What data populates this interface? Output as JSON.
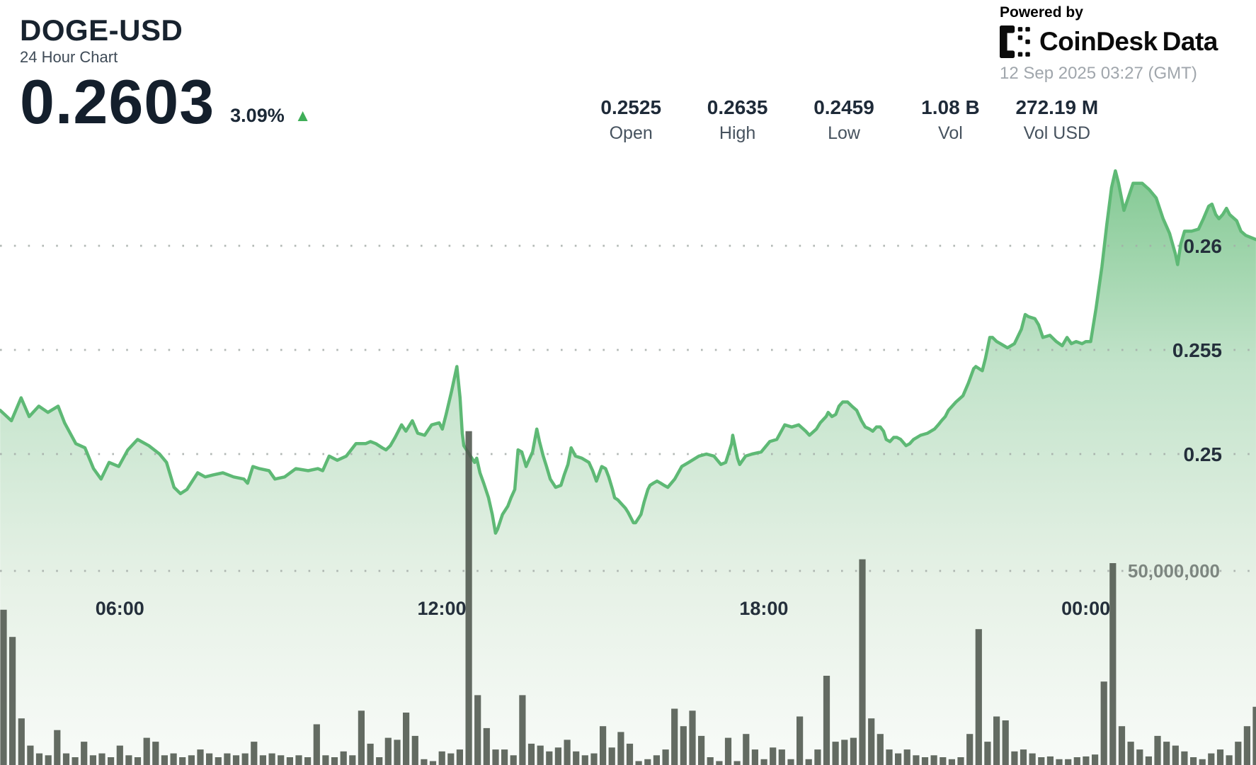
{
  "header": {
    "symbol": "DOGE-USD",
    "subtitle": "24 Hour Chart",
    "price": "0.2603",
    "change_percent": "3.09%",
    "change_direction": "up",
    "stats": [
      {
        "value": "0.2525",
        "label": "Open"
      },
      {
        "value": "0.2635",
        "label": "High"
      },
      {
        "value": "0.2459",
        "label": "Low"
      },
      {
        "value": "1.08 B",
        "label": "Vol"
      },
      {
        "value": "272.19 M",
        "label": "Vol USD"
      }
    ],
    "powered_by": "Powered by",
    "brand": {
      "primary": "CoinDesk",
      "secondary": "Data"
    },
    "timestamp": "12 Sep 2025 03:27 (GMT)"
  },
  "icons": {
    "up_triangle": "▲"
  },
  "colors": {
    "accent_green": "#3fae58",
    "line_green": "#5eb975",
    "area_top": "#7cc68d",
    "area_mid": "#c2e3ca",
    "area_low": "#e6f1e6",
    "area_bottom": "#f8fbf8",
    "volume_bar": "#4f574d",
    "grid": "#a5ada9",
    "axis_text_dark": "#242f3b",
    "volume_label_gray": "#7d8680"
  },
  "chart_data": {
    "type": "area",
    "title": "DOGE-USD 24 Hour Chart",
    "x_unit": "hours_gmt",
    "x_range": [
      3.77,
      27.17
    ],
    "price_ticks": [
      {
        "label": "0.26",
        "value": 0.26
      },
      {
        "label": "0.255",
        "value": 0.255
      },
      {
        "label": "0.25",
        "value": 0.25
      }
    ],
    "volume_ticks": [
      {
        "label": "50,000,000",
        "value": 50
      }
    ],
    "time_ticks": [
      {
        "label": "06:00",
        "t": 6
      },
      {
        "label": "12:00",
        "t": 12
      },
      {
        "label": "18:00",
        "t": 18
      },
      {
        "label": "00:00",
        "t": 24
      }
    ],
    "grid": "dotted",
    "price_series": [
      [
        3.77,
        0.2521
      ],
      [
        3.98,
        0.2516
      ],
      [
        4.16,
        0.2527
      ],
      [
        4.31,
        0.2518
      ],
      [
        4.49,
        0.2523
      ],
      [
        4.66,
        0.252
      ],
      [
        4.85,
        0.2523
      ],
      [
        4.97,
        0.2515
      ],
      [
        5.18,
        0.2505
      ],
      [
        5.35,
        0.2503
      ],
      [
        5.51,
        0.2493
      ],
      [
        5.65,
        0.2488
      ],
      [
        5.8,
        0.2496
      ],
      [
        5.98,
        0.2494
      ],
      [
        6.15,
        0.2502
      ],
      [
        6.33,
        0.2507
      ],
      [
        6.54,
        0.2504
      ],
      [
        6.74,
        0.25
      ],
      [
        6.87,
        0.2496
      ],
      [
        7.01,
        0.2484
      ],
      [
        7.13,
        0.2481
      ],
      [
        7.25,
        0.2483
      ],
      [
        7.45,
        0.2491
      ],
      [
        7.59,
        0.2489
      ],
      [
        7.74,
        0.249
      ],
      [
        7.92,
        0.2491
      ],
      [
        8.12,
        0.2489
      ],
      [
        8.31,
        0.2488
      ],
      [
        8.38,
        0.2486
      ],
      [
        8.48,
        0.2494
      ],
      [
        8.6,
        0.2493
      ],
      [
        8.78,
        0.2492
      ],
      [
        8.89,
        0.2488
      ],
      [
        9.07,
        0.2489
      ],
      [
        9.28,
        0.2493
      ],
      [
        9.51,
        0.2492
      ],
      [
        9.69,
        0.2493
      ],
      [
        9.78,
        0.2492
      ],
      [
        9.9,
        0.2499
      ],
      [
        10.05,
        0.2497
      ],
      [
        10.22,
        0.2499
      ],
      [
        10.4,
        0.2505
      ],
      [
        10.58,
        0.2505
      ],
      [
        10.67,
        0.2506
      ],
      [
        10.77,
        0.2505
      ],
      [
        10.89,
        0.2503
      ],
      [
        10.96,
        0.2502
      ],
      [
        11.04,
        0.2504
      ],
      [
        11.13,
        0.2508
      ],
      [
        11.25,
        0.2514
      ],
      [
        11.33,
        0.2511
      ],
      [
        11.45,
        0.2516
      ],
      [
        11.55,
        0.251
      ],
      [
        11.68,
        0.2509
      ],
      [
        11.81,
        0.2514
      ],
      [
        11.95,
        0.2515
      ],
      [
        12.01,
        0.2512
      ],
      [
        12.08,
        0.2519
      ],
      [
        12.18,
        0.253
      ],
      [
        12.28,
        0.2542
      ],
      [
        12.34,
        0.2527
      ],
      [
        12.38,
        0.251
      ],
      [
        12.41,
        0.2504
      ],
      [
        12.51,
        0.25
      ],
      [
        12.61,
        0.2496
      ],
      [
        12.65,
        0.2498
      ],
      [
        12.71,
        0.2491
      ],
      [
        12.78,
        0.2486
      ],
      [
        12.87,
        0.2479
      ],
      [
        12.94,
        0.2471
      ],
      [
        13.0,
        0.2462
      ],
      [
        13.04,
        0.2464
      ],
      [
        13.13,
        0.2471
      ],
      [
        13.23,
        0.2475
      ],
      [
        13.29,
        0.2479
      ],
      [
        13.36,
        0.2483
      ],
      [
        13.42,
        0.2502
      ],
      [
        13.49,
        0.2501
      ],
      [
        13.57,
        0.2494
      ],
      [
        13.62,
        0.2497
      ],
      [
        13.69,
        0.2501
      ],
      [
        13.77,
        0.2512
      ],
      [
        13.82,
        0.2506
      ],
      [
        13.89,
        0.2499
      ],
      [
        13.95,
        0.2494
      ],
      [
        14.02,
        0.2488
      ],
      [
        14.12,
        0.2484
      ],
      [
        14.22,
        0.2485
      ],
      [
        14.28,
        0.249
      ],
      [
        14.35,
        0.2495
      ],
      [
        14.41,
        0.2503
      ],
      [
        14.49,
        0.2499
      ],
      [
        14.61,
        0.2498
      ],
      [
        14.74,
        0.2496
      ],
      [
        14.81,
        0.2492
      ],
      [
        14.88,
        0.2487
      ],
      [
        14.91,
        0.2489
      ],
      [
        14.98,
        0.2494
      ],
      [
        15.05,
        0.2493
      ],
      [
        15.11,
        0.2489
      ],
      [
        15.18,
        0.2483
      ],
      [
        15.22,
        0.2479
      ],
      [
        15.28,
        0.2478
      ],
      [
        15.35,
        0.2476
      ],
      [
        15.42,
        0.2474
      ],
      [
        15.47,
        0.2472
      ],
      [
        15.57,
        0.2467
      ],
      [
        15.61,
        0.2467
      ],
      [
        15.71,
        0.2471
      ],
      [
        15.77,
        0.2477
      ],
      [
        15.84,
        0.2483
      ],
      [
        15.88,
        0.2485
      ],
      [
        15.94,
        0.2486
      ],
      [
        16.01,
        0.2487
      ],
      [
        16.08,
        0.2486
      ],
      [
        16.14,
        0.2485
      ],
      [
        16.21,
        0.2484
      ],
      [
        16.34,
        0.2488
      ],
      [
        16.47,
        0.2494
      ],
      [
        16.6,
        0.2496
      ],
      [
        16.79,
        0.2499
      ],
      [
        16.93,
        0.25
      ],
      [
        17.07,
        0.2499
      ],
      [
        17.2,
        0.2495
      ],
      [
        17.29,
        0.2496
      ],
      [
        17.4,
        0.2505
      ],
      [
        17.42,
        0.2509
      ],
      [
        17.51,
        0.2498
      ],
      [
        17.55,
        0.2495
      ],
      [
        17.66,
        0.2499
      ],
      [
        17.78,
        0.25
      ],
      [
        17.95,
        0.2501
      ],
      [
        18.11,
        0.2506
      ],
      [
        18.24,
        0.2507
      ],
      [
        18.39,
        0.2514
      ],
      [
        18.52,
        0.2513
      ],
      [
        18.65,
        0.2514
      ],
      [
        18.78,
        0.2511
      ],
      [
        18.85,
        0.2509
      ],
      [
        18.98,
        0.2512
      ],
      [
        19.05,
        0.2515
      ],
      [
        19.16,
        0.2518
      ],
      [
        19.2,
        0.252
      ],
      [
        19.27,
        0.2518
      ],
      [
        19.34,
        0.2519
      ],
      [
        19.4,
        0.2523
      ],
      [
        19.47,
        0.2525
      ],
      [
        19.56,
        0.2525
      ],
      [
        19.64,
        0.2523
      ],
      [
        19.73,
        0.2521
      ],
      [
        19.82,
        0.2516
      ],
      [
        19.89,
        0.2513
      ],
      [
        19.97,
        0.2512
      ],
      [
        20.03,
        0.2511
      ],
      [
        20.1,
        0.2513
      ],
      [
        20.17,
        0.2513
      ],
      [
        20.23,
        0.2511
      ],
      [
        20.28,
        0.2507
      ],
      [
        20.35,
        0.2506
      ],
      [
        20.42,
        0.2508
      ],
      [
        20.48,
        0.2508
      ],
      [
        20.55,
        0.2507
      ],
      [
        20.65,
        0.2504
      ],
      [
        20.72,
        0.2505
      ],
      [
        20.79,
        0.2507
      ],
      [
        20.92,
        0.2509
      ],
      [
        21.05,
        0.251
      ],
      [
        21.18,
        0.2512
      ],
      [
        21.25,
        0.2514
      ],
      [
        21.31,
        0.2516
      ],
      [
        21.38,
        0.2518
      ],
      [
        21.44,
        0.2521
      ],
      [
        21.58,
        0.2525
      ],
      [
        21.71,
        0.2528
      ],
      [
        21.81,
        0.2534
      ],
      [
        21.91,
        0.2541
      ],
      [
        21.95,
        0.2542
      ],
      [
        22.07,
        0.254
      ],
      [
        22.13,
        0.2546
      ],
      [
        22.21,
        0.2556
      ],
      [
        22.26,
        0.2556
      ],
      [
        22.34,
        0.2554
      ],
      [
        22.41,
        0.2553
      ],
      [
        22.54,
        0.2551
      ],
      [
        22.67,
        0.2553
      ],
      [
        22.8,
        0.256
      ],
      [
        22.87,
        0.2567
      ],
      [
        22.93,
        0.2566
      ],
      [
        23.05,
        0.2565
      ],
      [
        23.12,
        0.2562
      ],
      [
        23.2,
        0.2556
      ],
      [
        23.33,
        0.2557
      ],
      [
        23.45,
        0.2554
      ],
      [
        23.56,
        0.2552
      ],
      [
        23.65,
        0.2556
      ],
      [
        23.73,
        0.2553
      ],
      [
        23.82,
        0.2554
      ],
      [
        23.93,
        0.2553
      ],
      [
        24.0,
        0.2554
      ],
      [
        24.09,
        0.2554
      ],
      [
        24.19,
        0.257
      ],
      [
        24.3,
        0.259
      ],
      [
        24.39,
        0.261
      ],
      [
        24.48,
        0.2628
      ],
      [
        24.55,
        0.2636
      ],
      [
        24.61,
        0.263
      ],
      [
        24.71,
        0.2617
      ],
      [
        24.79,
        0.2623
      ],
      [
        24.88,
        0.263
      ],
      [
        25.05,
        0.263
      ],
      [
        25.18,
        0.2627
      ],
      [
        25.31,
        0.2623
      ],
      [
        25.44,
        0.2613
      ],
      [
        25.56,
        0.2606
      ],
      [
        25.67,
        0.2596
      ],
      [
        25.71,
        0.2591
      ],
      [
        25.77,
        0.2601
      ],
      [
        25.84,
        0.2607
      ],
      [
        25.97,
        0.2607
      ],
      [
        26.1,
        0.2608
      ],
      [
        26.19,
        0.2613
      ],
      [
        26.29,
        0.2619
      ],
      [
        26.35,
        0.262
      ],
      [
        26.42,
        0.2615
      ],
      [
        26.48,
        0.2613
      ],
      [
        26.55,
        0.2615
      ],
      [
        26.62,
        0.2618
      ],
      [
        26.68,
        0.2615
      ],
      [
        26.81,
        0.2612
      ],
      [
        26.89,
        0.2607
      ],
      [
        26.98,
        0.2605
      ],
      [
        27.17,
        0.2603
      ]
    ],
    "volume_series_millions": {
      "t_start": 3.833,
      "t_step": 0.1667,
      "values": [
        40,
        33,
        12,
        5,
        3,
        2.5,
        9,
        3,
        2,
        6,
        2.5,
        3,
        2,
        5,
        2.5,
        2,
        7,
        6,
        2.5,
        3,
        2,
        2.5,
        4,
        3,
        2,
        3,
        2.5,
        3,
        6,
        2.5,
        3,
        2.5,
        2,
        2.5,
        2,
        10.5,
        2.5,
        2,
        3.5,
        2.5,
        14,
        5.5,
        2,
        7,
        6.5,
        13.5,
        7.5,
        1.5,
        1,
        3.5,
        3,
        4,
        86,
        18,
        9.5,
        4,
        4,
        2.5,
        18,
        5.5,
        5,
        3.5,
        4.5,
        6.5,
        3.5,
        2.5,
        3,
        10,
        4.5,
        8.5,
        5.5,
        1,
        1.5,
        2.5,
        4,
        14.5,
        10,
        14,
        7.5,
        2,
        1,
        7,
        1,
        8,
        4,
        1.5,
        4.5,
        4,
        1.5,
        12.5,
        1.5,
        4,
        23,
        6,
        6.5,
        7,
        53,
        12,
        8,
        4,
        3,
        4,
        2.5,
        2,
        2.5,
        2,
        1.5,
        2,
        8,
        35,
        6,
        12.5,
        11.5,
        3.5,
        4,
        3,
        2,
        2.2,
        1.5,
        1.5,
        2,
        2.2,
        2.7,
        21.5,
        52,
        10,
        6,
        4,
        2.2,
        7.5,
        6,
        5,
        3.5,
        2,
        1.5,
        3,
        4,
        2.5,
        6,
        10,
        15
      ]
    }
  }
}
